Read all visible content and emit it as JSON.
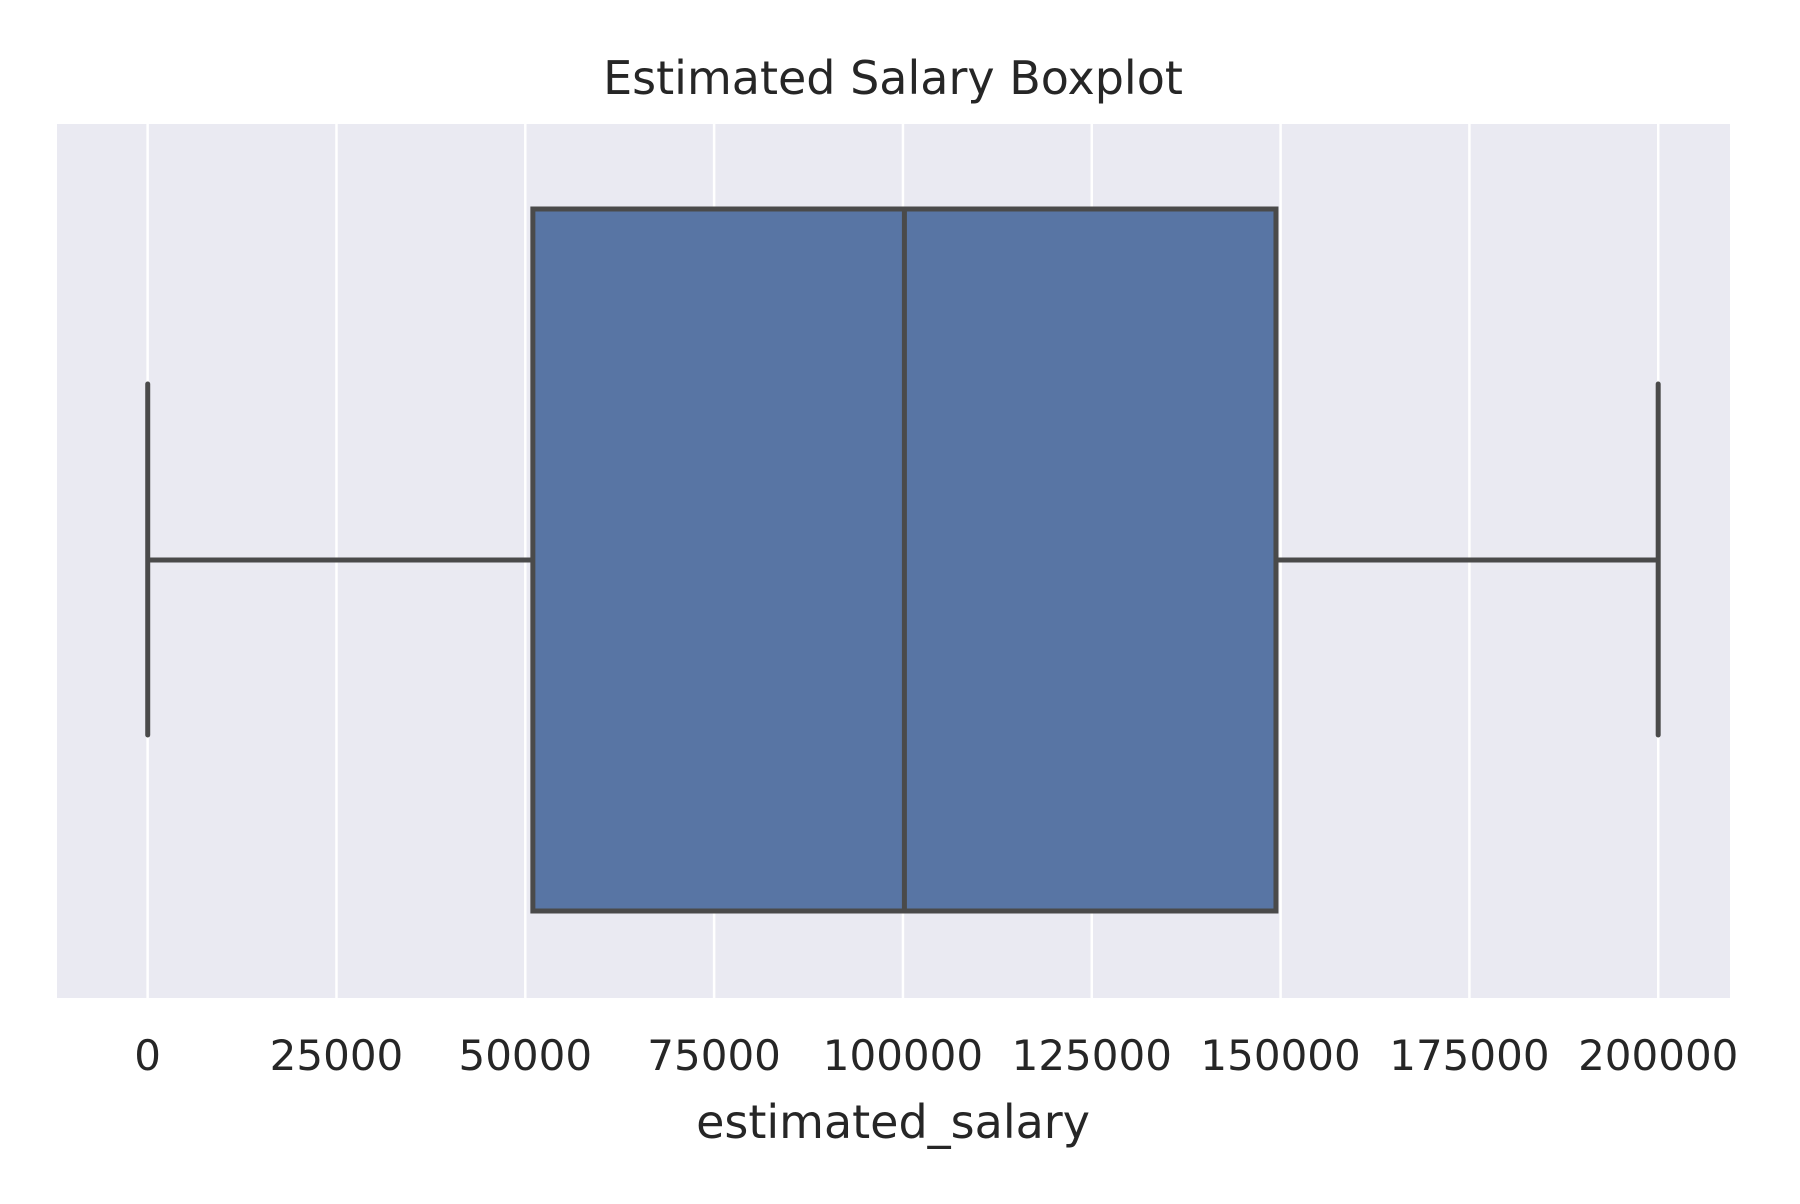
{
  "chart_data": {
    "type": "boxplot",
    "title": "Estimated Salary Boxplot",
    "xlabel": "estimated_salary",
    "ylabel": "",
    "xlim": [
      -12000,
      209500
    ],
    "xticks": [
      0,
      25000,
      50000,
      75000,
      100000,
      125000,
      150000,
      175000,
      200000
    ],
    "xtick_labels": [
      "0",
      "25000",
      "50000",
      "75000",
      "100000",
      "125000",
      "150000",
      "175000",
      "200000"
    ],
    "grid": true,
    "orientation": "horizontal",
    "box": {
      "whisker_low": 11.58,
      "q1": 51002,
      "median": 100194,
      "q3": 149388,
      "whisker_high": 199992
    },
    "colors": {
      "box_fill": "#5875a4",
      "line": "#4a4a4a",
      "background": "#eaeaf2",
      "grid": "#ffffff"
    }
  }
}
